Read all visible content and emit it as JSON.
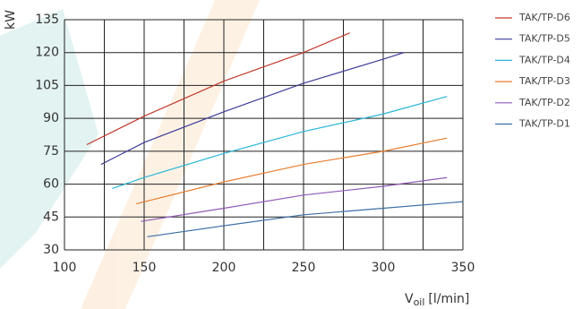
{
  "chart_data": {
    "type": "line",
    "y_label": "kW",
    "x_label": {
      "symbol": "V",
      "subscript": "oil",
      "unit": "[l/min]"
    },
    "xlim": [
      100,
      350
    ],
    "ylim": [
      30,
      135
    ],
    "xticks": [
      100,
      150,
      200,
      250,
      300,
      350
    ],
    "xminorticks": [
      125,
      175,
      225,
      275,
      325
    ],
    "yticks": [
      30,
      45,
      60,
      75,
      90,
      105,
      120,
      135
    ],
    "grid": true,
    "legend": "right",
    "series": [
      {
        "name": "TAK/TP-D6",
        "color": "#c0392b",
        "x": [
          114,
          150,
          200,
          250,
          279
        ],
        "values": [
          78,
          91,
          107,
          120,
          129
        ]
      },
      {
        "name": "TAK/TP-D5",
        "color": "#3b3b98",
        "x": [
          123,
          150,
          200,
          250,
          300,
          313
        ],
        "values": [
          69,
          79,
          93,
          106,
          117,
          120
        ]
      },
      {
        "name": "TAK/TP-D4",
        "color": "#29b6d8",
        "x": [
          130,
          150,
          200,
          250,
          300,
          340
        ],
        "values": [
          58,
          63,
          74,
          84,
          92,
          100
        ]
      },
      {
        "name": "TAK/TP-D3",
        "color": "#e87d2e",
        "x": [
          145,
          200,
          250,
          300,
          340
        ],
        "values": [
          51,
          61,
          69,
          75,
          81
        ]
      },
      {
        "name": "TAK/TP-D2",
        "color": "#8e5bb5",
        "x": [
          148,
          200,
          250,
          300,
          340
        ],
        "values": [
          43,
          49,
          55,
          59,
          63
        ]
      },
      {
        "name": "TAK/TP-D1",
        "color": "#3d6fa8",
        "x": [
          152,
          200,
          250,
          300,
          350
        ],
        "values": [
          36,
          41,
          46,
          49,
          52
        ]
      }
    ]
  }
}
